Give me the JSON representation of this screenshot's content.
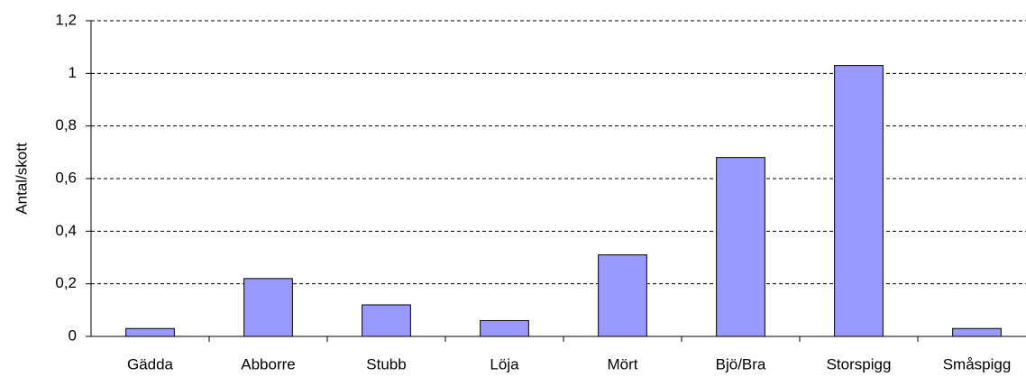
{
  "chart_data": {
    "type": "bar",
    "y_label": "Antal/skott",
    "categories": [
      "Gädda",
      "Abborre",
      "Stubb",
      "Löja",
      "Mört",
      "Bjö/Bra",
      "Storspigg",
      "Småspigg"
    ],
    "values": [
      0.03,
      0.22,
      0.12,
      0.06,
      0.31,
      0.68,
      1.03,
      0.03
    ],
    "color": "#9999ff",
    "ylim": [
      0,
      1.2
    ],
    "yticks": [
      0,
      {
        "value": 0.2,
        "label": "0,2"
      },
      {
        "value": 0.4,
        "label": "0,4"
      },
      {
        "value": 0.6,
        "label": "0,6"
      },
      {
        "value": 0.8,
        "label": "0,8"
      },
      1,
      {
        "value": 1.2,
        "label": "1,2"
      }
    ],
    "grid": true
  }
}
